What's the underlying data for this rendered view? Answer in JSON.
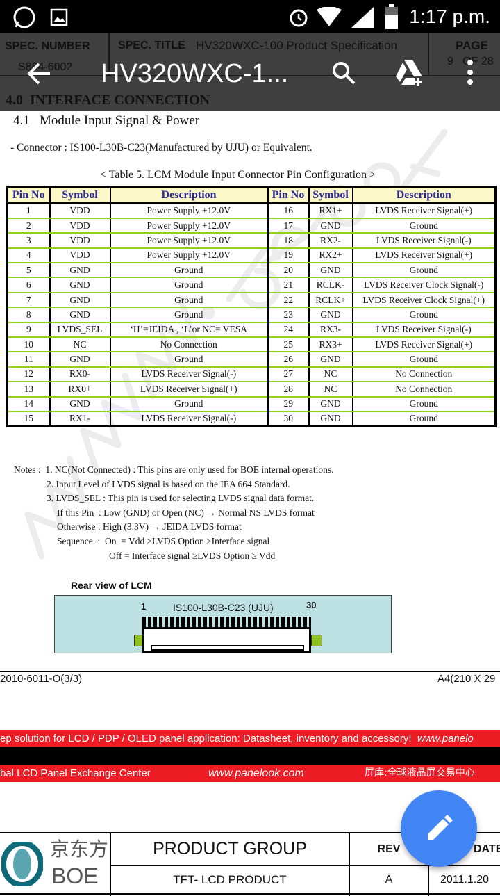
{
  "status_bar": {
    "time": "1:17 p.m.",
    "icons": [
      "whatsapp-icon",
      "image-icon",
      "alarm-icon",
      "wifi-icon",
      "signal-icon",
      "battery-icon"
    ]
  },
  "app_bar": {
    "title": "HV320WXC-1...",
    "icons": [
      "back-arrow-icon",
      "search-icon",
      "drive-add-icon",
      "more-vert-icon"
    ]
  },
  "doc_header": {
    "spec_number_label": "SPEC. NUMBER",
    "spec_number": "S864-6002",
    "spec_title_label": "SPEC. TITLE",
    "spec_title": "HV320WXC-100 Product Specification",
    "page_label": "PAGE",
    "page": "9   OF 28",
    "section": "4.0  INTERFACE CONNECTION"
  },
  "subsection": "4.1   Module Input Signal & Power",
  "connector": "- Connector : IS100-L30B-C23(Manufactured by UJU) or Equivalent.",
  "table_caption": "< Table 5. LCM Module Input Connector Pin Configuration >",
  "table": {
    "headers": [
      "Pin No",
      "Symbol",
      "Description",
      "Pin No",
      "Symbol",
      "Description"
    ],
    "rows": [
      [
        "1",
        "VDD",
        "Power Supply +12.0V",
        "16",
        "RX1+",
        "LVDS Receiver Signal(+)"
      ],
      [
        "2",
        "VDD",
        "Power Supply +12.0V",
        "17",
        "GND",
        "Ground"
      ],
      [
        "3",
        "VDD",
        "Power Supply +12.0V",
        "18",
        "RX2-",
        "LVDS Receiver Signal(-)"
      ],
      [
        "4",
        "VDD",
        "Power Supply +12.0V",
        "19",
        "RX2+",
        "LVDS Receiver Signal(+)"
      ],
      [
        "5",
        "GND",
        "Ground",
        "20",
        "GND",
        "Ground"
      ],
      [
        "6",
        "GND",
        "Ground",
        "21",
        "RCLK-",
        "LVDS Receiver Clock Signal(-)"
      ],
      [
        "7",
        "GND",
        "Ground",
        "22",
        "RCLK+",
        "LVDS Receiver Clock Signal(+)"
      ],
      [
        "8",
        "GND",
        "Ground",
        "23",
        "GND",
        "Ground"
      ],
      [
        "9",
        "LVDS_SEL",
        "‘H’=JEIDA , ‘L’or NC= VESA",
        "24",
        "RX3-",
        "LVDS Receiver Signal(-)"
      ],
      [
        "10",
        "NC",
        "No Connection",
        "25",
        "RX3+",
        "LVDS Receiver Signal(+)"
      ],
      [
        "11",
        "GND",
        "Ground",
        "26",
        "GND",
        "Ground"
      ],
      [
        "12",
        "RX0-",
        "LVDS Receiver Signal(-)",
        "27",
        "NC",
        "No Connection"
      ],
      [
        "13",
        "RX0+",
        "LVDS Receiver Signal(+)",
        "28",
        "NC",
        "No Connection"
      ],
      [
        "14",
        "GND",
        "Ground",
        "29",
        "GND",
        "Ground"
      ],
      [
        "15",
        "RX1-",
        "LVDS Receiver Signal(-)",
        "30",
        "GND",
        "Ground"
      ]
    ]
  },
  "notes": [
    "Notes :  1. NC(Not Connected) : This pins are only used for BOE internal operations.",
    "2. Input Level of LVDS signal is based on the IEA 664 Standard.",
    "3. LVDS_SEL : This pin is used for selecting LVDS signal data format.",
    "If this Pin  : Low (GND) or Open (NC) → Normal NS LVDS format",
    "Otherwise : High (3.3V) → JEIDA LVDS format",
    "Sequence  :  On  = Vdd ≥LVDS Option ≥Interface signal",
    "Off = Interface signal ≥LVDS Option ≥ Vdd"
  ],
  "rear_view": {
    "title": "Rear view of LCM",
    "pin_first": "1",
    "pin_last": "30",
    "connector_label": "IS100-L30B-C23 (UJU)"
  },
  "footer": {
    "left": "2010-6011-O(3/3)",
    "right": "A4(210 X 29"
  },
  "banner1": {
    "text": "ep solution for LCD / PDP / OLED panel application: Datasheet, inventory and accessory!",
    "url": "www.panelo"
  },
  "banner2": {
    "left": "bal LCD Panel Exchange Center",
    "url": "www.panelook.com",
    "cn": "屏库:全球液晶屏交易中心"
  },
  "watermark": "www.panelook.com",
  "title_block": {
    "logo_cn": "京东方",
    "logo_en": "BOE",
    "product_group_label": "PRODUCT GROUP",
    "product_group": "TFT- LCD PRODUCT",
    "rev_label": "REV",
    "rev": "A",
    "date_label": "DATE",
    "date": "2011.1.20"
  },
  "fab": {
    "icon": "pencil-icon",
    "color": "#4285f4"
  }
}
